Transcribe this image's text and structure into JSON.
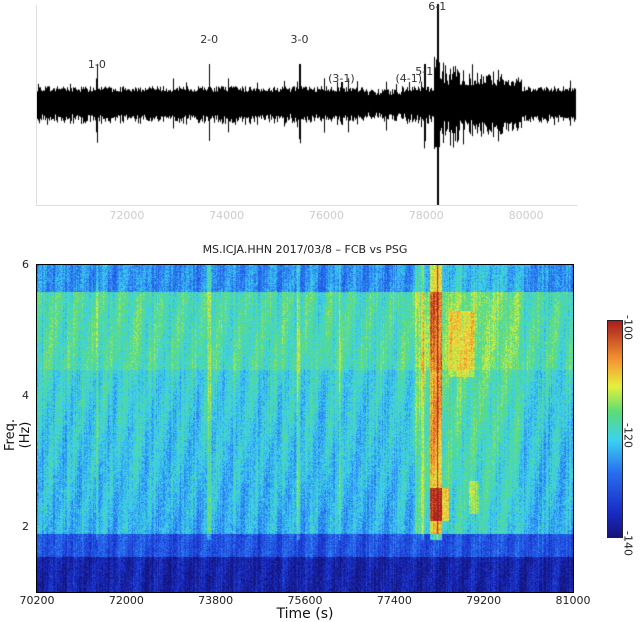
{
  "chart_data": [
    {
      "type": "line",
      "xlim": [
        70200,
        81000
      ],
      "x_ticks": [
        72000,
        74000,
        76000,
        78000,
        80000
      ],
      "grid": false,
      "series_color": "#000000",
      "annotations": [
        {
          "label": "1-0",
          "x": 71400
        },
        {
          "label": "2-0",
          "x": 73650
        },
        {
          "label": "3-0",
          "x": 75460
        },
        {
          "label": "(3-1)",
          "x": 76300
        },
        {
          "label": "(4-1)",
          "x": 77650
        },
        {
          "label": "5-1",
          "x": 77960
        },
        {
          "label": "6-1",
          "x": 78220
        }
      ]
    },
    {
      "type": "heatmap",
      "title": "MS.ICJA.HHN 2017/03/8 – FCB vs PSG",
      "xlabel": "Time (s)",
      "ylabel": "Freq. (Hz)",
      "xlim": [
        70200,
        81000
      ],
      "ylim": [
        1,
        6
      ],
      "x_ticks": [
        70200,
        72000,
        73800,
        75600,
        77400,
        79200,
        81000
      ],
      "y_ticks": [
        2,
        4,
        6
      ],
      "colorbar": {
        "range": [
          -140,
          -100
        ],
        "ticks": [
          -100,
          -120,
          -140
        ],
        "colormap": "jet"
      }
    }
  ]
}
